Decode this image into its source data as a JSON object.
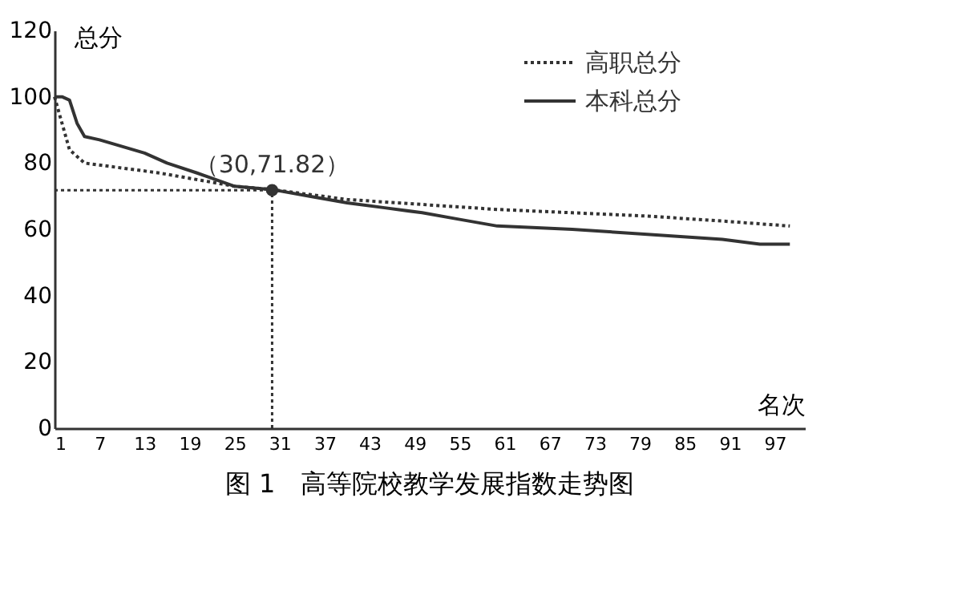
{
  "chart_data": {
    "type": "line",
    "xlabel": "名次",
    "ylabel": "总分",
    "xlim": [
      1,
      101
    ],
    "xticks": [
      1,
      7,
      13,
      19,
      25,
      31,
      37,
      43,
      49,
      55,
      61,
      67,
      73,
      79,
      85,
      91,
      97
    ],
    "ylim": [
      0,
      120
    ],
    "yticks": [
      0,
      20,
      40,
      60,
      80,
      100,
      120
    ],
    "grid": false,
    "legend": "top right",
    "marker": "none",
    "series": [
      {
        "name": "高职总分",
        "color": "#333333",
        "line_style": "dotted",
        "x": [
          1,
          2,
          3,
          5,
          10,
          15,
          20,
          25,
          30,
          35,
          40,
          50,
          60,
          70,
          80,
          90,
          99
        ],
        "values": [
          100,
          92,
          84,
          80,
          78.5,
          77,
          75,
          73,
          72,
          70.5,
          69,
          67.5,
          66,
          65,
          64,
          62.5,
          61
        ]
      },
      {
        "name": "本科总分",
        "color": "#333333",
        "line_style": "solid",
        "x": [
          1,
          2,
          3,
          4,
          5,
          7,
          10,
          13,
          16,
          20,
          25,
          30,
          35,
          40,
          45,
          50,
          55,
          60,
          70,
          80,
          90,
          95,
          99
        ],
        "values": [
          100,
          100,
          99,
          92,
          88,
          87,
          85,
          83,
          80,
          77,
          73,
          72,
          70,
          68,
          66.5,
          65,
          63,
          61,
          60,
          58.5,
          57,
          55.5,
          55.5
        ]
      }
    ],
    "ref_lines": [
      {
        "axis": "x",
        "value": 30,
        "line_style": "dotted",
        "color": "#333333"
      },
      {
        "axis": "y",
        "value": 71.82,
        "line_style": "dotted",
        "color": "#333333"
      }
    ],
    "annotations": [
      {
        "text": "（30,71.82）",
        "x": 30,
        "y": 71.82
      },
      "图 1　高等院校教学发展指数走势图"
    ]
  }
}
